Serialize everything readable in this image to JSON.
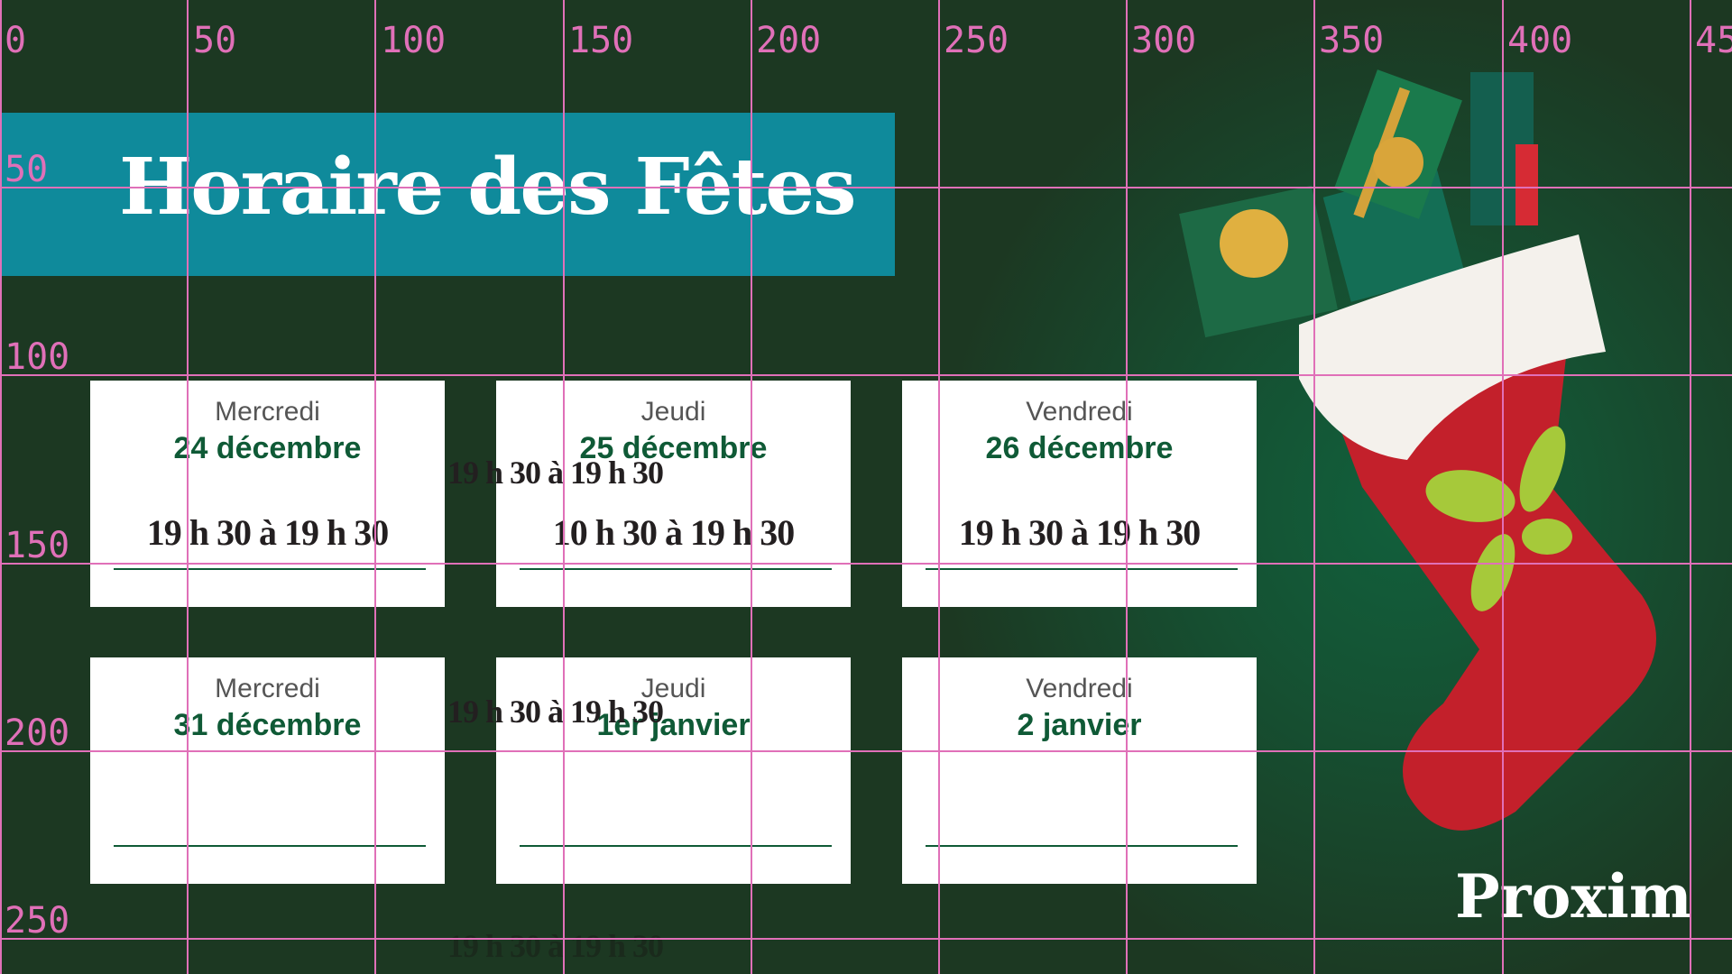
{
  "title": "Horaire des Fêtes",
  "cards": [
    {
      "day": "Mercredi",
      "date": "24 décembre",
      "time": "19 h 30 à 19 h 30"
    },
    {
      "day": "Jeudi",
      "date": "25 décembre",
      "time": "10 h 30 à 19 h 30"
    },
    {
      "day": "Vendredi",
      "date": "26 décembre",
      "time": "19 h 30 à 19 h 30"
    },
    {
      "day": "Mercredi",
      "date": "31 décembre",
      "time": ""
    },
    {
      "day": "Jeudi",
      "date": "1er janvier",
      "time": ""
    },
    {
      "day": "Vendredi",
      "date": "2 janvier",
      "time": ""
    }
  ],
  "stray_times": [
    "19 h 30 à 19 h 30",
    "19 h 30 à 19 h 30",
    "19 h 30 à 19 h 30"
  ],
  "grid": {
    "x_labels": [
      "0",
      "50",
      "100",
      "150",
      "200",
      "250",
      "300",
      "350",
      "400",
      "45"
    ],
    "y_labels": [
      "50",
      "100",
      "150",
      "200",
      "250"
    ],
    "color": "#e070b8"
  },
  "brand": {
    "logo": "Proxim",
    "accent": "#a6c93a"
  },
  "colors": {
    "background": "#1c3822",
    "banner": "#0f8a9b",
    "date": "#0f5a36"
  }
}
